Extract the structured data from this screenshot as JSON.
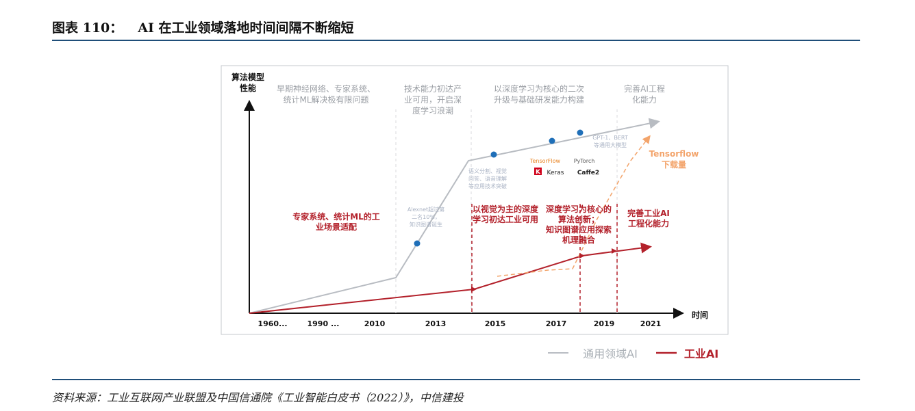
{
  "header": {
    "label": "图表 110：",
    "title": "AI 在工业领域落地时间间隔不断缩短"
  },
  "source": "资料来源：工业互联网产业联盟及中国信通院《工业智能白皮书（2022）》，中信建投",
  "colors": {
    "rule": "#1f4e79",
    "general_ai": "#b8bcc2",
    "industrial_ai": "#b3212b",
    "dot": "#1f6fb8",
    "tensorflow": "#f3a46b"
  },
  "chart_data": {
    "type": "line",
    "ylabel": "算法模型\n性能",
    "xlabel": "时间",
    "categories": [
      "1960...",
      "1990 ...",
      "2010",
      "2013",
      "2015",
      "2017",
      "2019",
      "2021"
    ],
    "series": [
      {
        "name": "通用领域AI",
        "key": "general"
      },
      {
        "name": "工业AI",
        "key": "industrial"
      },
      {
        "name": "Tensorflow\n下载量",
        "key": "tensorflow"
      }
    ],
    "stages_general": [
      "早期神经网络、专家系统、\n统计ML解决极有限问题",
      "技术能力初达产\n业可用，开启深\n度学习浪潮",
      "以深度学习为核心的二次\n升级与基础研发能力构建",
      "完善AI工程\n化能力"
    ],
    "stages_industrial": [
      "专家系统、统计ML的工\n业场景适配",
      "以视觉为主的深度\n学习初达工业可用",
      "深度学习为核心的\n算法创新；\n知识图谱应用探索\n机理融合",
      "完善工业AI\n工程化能力"
    ],
    "milestones": [
      "Alexnet超过第\n二名10%，\n知识图谱诞生",
      "语义分割、视觉\n问答、语音理解\n等应用技术突破",
      "GPT-1、BERT\n等通用大模型"
    ],
    "frameworks": [
      "TensorFlow",
      "PyTorch",
      "Keras",
      "Caffe2"
    ],
    "legend": {
      "general": "通用领域AI",
      "industrial": "工业AI"
    }
  }
}
